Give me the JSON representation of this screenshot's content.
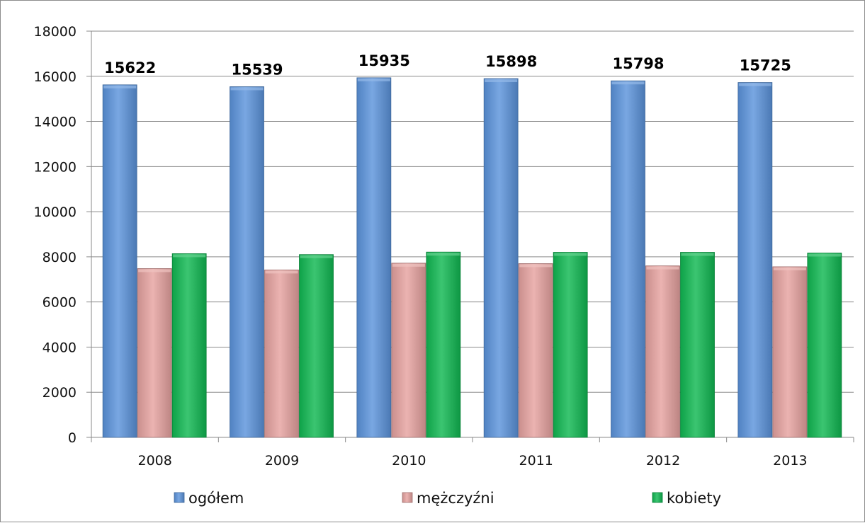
{
  "chart_data": {
    "type": "bar",
    "title": "",
    "xlabel": "",
    "ylabel": "",
    "categories": [
      "2008",
      "2009",
      "2010",
      "2011",
      "2012",
      "2013"
    ],
    "series": [
      {
        "name": "ogółem",
        "color": "#5b94dc",
        "values": [
          15622,
          15539,
          15935,
          15898,
          15798,
          15725
        ]
      },
      {
        "name": "mężczyźni",
        "color": "#e6a2a0",
        "values": [
          7480,
          7420,
          7720,
          7700,
          7600,
          7560
        ]
      },
      {
        "name": "kobiety",
        "color": "#10b852",
        "values": [
          8140,
          8100,
          8210,
          8200,
          8200,
          8170
        ]
      }
    ],
    "data_labels": {
      "series": "ogółem",
      "values": [
        "15622",
        "15539",
        "15935",
        "15898",
        "15798",
        "15725"
      ]
    },
    "ylim": [
      0,
      18000
    ],
    "yticks": [
      "0",
      "2000",
      "4000",
      "6000",
      "8000",
      "10000",
      "12000",
      "14000",
      "16000",
      "18000"
    ],
    "grid": true,
    "legend_position": "bottom"
  }
}
